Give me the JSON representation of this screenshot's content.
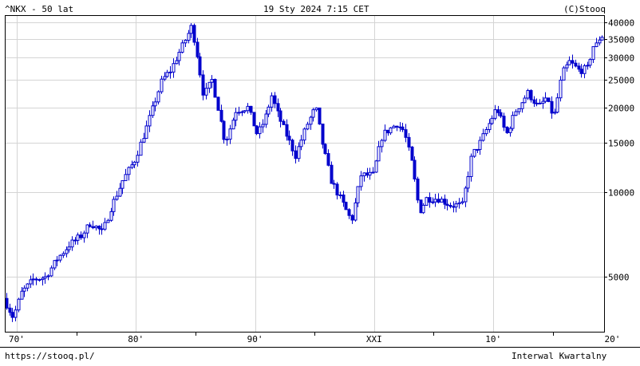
{
  "header": {
    "symbol_title": "^NKX - 50 lat",
    "timestamp": "19 Sty 2024 7:15 CET",
    "copyright": "(C)Stooq"
  },
  "footer": {
    "url": "https://stooq.pl/",
    "interval": "Interwal Kwartalny"
  },
  "chart_data": {
    "type": "candlestick",
    "scale": "log",
    "grid": true,
    "colors": {
      "candle": "#0000cc",
      "grid": "#d4d4d4",
      "axis": "#000000"
    },
    "y_ticks": [
      {
        "value": 40000,
        "label": "40000"
      },
      {
        "value": 35000,
        "label": "35000"
      },
      {
        "value": 30000,
        "label": "30000"
      },
      {
        "value": 25000,
        "label": "25000"
      },
      {
        "value": 20000,
        "label": "20000"
      },
      {
        "value": 15000,
        "label": "15000"
      },
      {
        "value": 10000,
        "label": "10000"
      },
      {
        "value": 5000,
        "label": "5000"
      }
    ],
    "ylim": [
      3200,
      42500
    ],
    "xlim": [
      1974.0,
      2024.3
    ],
    "x_ticks": [
      {
        "year": 1970,
        "label": "70'"
      },
      {
        "year": 1980,
        "label": "80'"
      },
      {
        "year": 1990,
        "label": "90'"
      },
      {
        "year": 2000,
        "label": "XXI"
      },
      {
        "year": 2010,
        "label": "10'"
      },
      {
        "year": 2020,
        "label": "20'"
      }
    ],
    "x_gridlines": [
      1975,
      1985,
      1995,
      2005,
      2015
    ],
    "anchors": [
      [
        1974.0,
        4200
      ],
      [
        1974.8,
        3600
      ],
      [
        1975.5,
        4400
      ],
      [
        1976.5,
        4900
      ],
      [
        1977.5,
        5000
      ],
      [
        1978.5,
        5800
      ],
      [
        1979.5,
        6500
      ],
      [
        1980.5,
        7000
      ],
      [
        1981.3,
        7800
      ],
      [
        1982.3,
        7200
      ],
      [
        1983.0,
        8800
      ],
      [
        1984.0,
        11000
      ],
      [
        1985.0,
        13000
      ],
      [
        1986.0,
        17000
      ],
      [
        1987.3,
        25000
      ],
      [
        1988.0,
        27000
      ],
      [
        1989.0,
        33000
      ],
      [
        1989.8,
        38900
      ],
      [
        1990.3,
        30000
      ],
      [
        1990.8,
        22000
      ],
      [
        1991.5,
        25000
      ],
      [
        1992.0,
        20000
      ],
      [
        1992.6,
        15000
      ],
      [
        1993.5,
        19500
      ],
      [
        1994.5,
        20000
      ],
      [
        1995.3,
        16000
      ],
      [
        1995.9,
        18000
      ],
      [
        1996.5,
        22000
      ],
      [
        1997.0,
        19000
      ],
      [
        1997.6,
        16500
      ],
      [
        1998.5,
        13500
      ],
      [
        1999.5,
        17500
      ],
      [
        2000.2,
        20000
      ],
      [
        2000.8,
        14500
      ],
      [
        2001.5,
        11000
      ],
      [
        2002.0,
        10000
      ],
      [
        2003.2,
        7900
      ],
      [
        2004.0,
        11500
      ],
      [
        2005.0,
        11500
      ],
      [
        2005.8,
        16000
      ],
      [
        2007.0,
        17500
      ],
      [
        2007.6,
        16500
      ],
      [
        2008.3,
        12500
      ],
      [
        2008.9,
        8500
      ],
      [
        2009.5,
        9500
      ],
      [
        2010.5,
        9500
      ],
      [
        2011.5,
        9000
      ],
      [
        2012.5,
        9000
      ],
      [
        2013.3,
        13500
      ],
      [
        2014.0,
        15000
      ],
      [
        2015.4,
        20000
      ],
      [
        2016.2,
        16000
      ],
      [
        2017.0,
        19500
      ],
      [
        2018.0,
        22500
      ],
      [
        2018.9,
        20000
      ],
      [
        2019.5,
        21500
      ],
      [
        2020.2,
        18500
      ],
      [
        2020.9,
        26500
      ],
      [
        2021.5,
        29000
      ],
      [
        2022.3,
        27000
      ],
      [
        2023.0,
        27500
      ],
      [
        2023.5,
        33000
      ],
      [
        2023.9,
        33500
      ],
      [
        2024.05,
        35900
      ]
    ]
  }
}
